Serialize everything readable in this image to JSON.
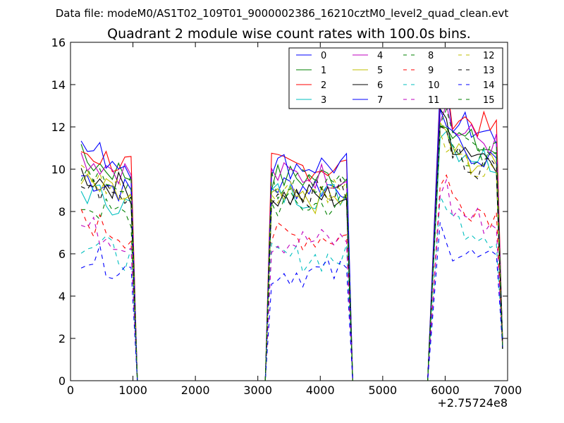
{
  "chart_data": {
    "type": "line",
    "suptitle": "Data file: modeM0/AS1T02_109T01_9000002386_16210cztM0_level2_quad_clean.evt",
    "title": "Quadrant 2 module wise count rates with 100.0s bins.",
    "xlabel": "",
    "ylabel": "",
    "x_offset_label": "+2.75724e8",
    "xlim": [
      0,
      7000
    ],
    "ylim": [
      0,
      16
    ],
    "xticks": [
      0,
      1000,
      2000,
      3000,
      4000,
      5000,
      6000,
      7000
    ],
    "yticks": [
      0,
      2,
      4,
      6,
      8,
      10,
      12,
      14,
      16
    ],
    "xtick_labels": [
      "0",
      "1000",
      "2000",
      "3000",
      "4000",
      "5000",
      "6000",
      "7000"
    ],
    "ytick_labels": [
      "0",
      "2",
      "4",
      "6",
      "8",
      "10",
      "12",
      "14",
      "16"
    ],
    "legend_position": "top-right",
    "legend_columns": 4,
    "segments": [
      {
        "start": 170,
        "end": 970,
        "drop_to": 1070
      },
      {
        "start": 3220,
        "end": 4420,
        "rise_from": 3120,
        "drop_to": 4520
      },
      {
        "start": 5920,
        "end": 6820,
        "rise_from": 5720,
        "drop_to": 6920
      }
    ],
    "gap_points": [
      1170,
      2000,
      3020,
      4620,
      5600
    ],
    "series": [
      {
        "name": "0",
        "color": "#0000ff",
        "dash": "solid",
        "levels": [
          9.7,
          9.2,
          12.5
        ]
      },
      {
        "name": "1",
        "color": "#008000",
        "dash": "solid",
        "levels": [
          10.5,
          9.6,
          11.8
        ]
      },
      {
        "name": "2",
        "color": "#ff0000",
        "dash": "solid",
        "levels": [
          10.9,
          10.1,
          12.8
        ]
      },
      {
        "name": "3",
        "color": "#00bfbf",
        "dash": "solid",
        "levels": [
          9.0,
          8.8,
          11.3
        ]
      },
      {
        "name": "4",
        "color": "#bf00bf",
        "dash": "solid",
        "levels": [
          10.6,
          9.7,
          12.1
        ]
      },
      {
        "name": "5",
        "color": "#bfbf00",
        "dash": "solid",
        "levels": [
          9.3,
          8.5,
          11.0
        ]
      },
      {
        "name": "6",
        "color": "#000000",
        "dash": "solid",
        "levels": [
          9.8,
          8.7,
          11.5
        ]
      },
      {
        "name": "7",
        "color": "#0000ff",
        "dash": "solid",
        "levels": [
          11.0,
          10.2,
          11.4
        ]
      },
      {
        "name": "8",
        "color": "#008000",
        "dash": "dashed",
        "levels": [
          8.4,
          8.3,
          11.2
        ]
      },
      {
        "name": "9",
        "color": "#ff0000",
        "dash": "dashed",
        "levels": [
          7.6,
          6.8,
          8.8
        ]
      },
      {
        "name": "10",
        "color": "#00bfbf",
        "dash": "dashed",
        "levels": [
          6.6,
          5.8,
          7.8
        ]
      },
      {
        "name": "11",
        "color": "#bf00bf",
        "dash": "dashed",
        "levels": [
          7.3,
          6.6,
          8.3
        ]
      },
      {
        "name": "12",
        "color": "#bfbf00",
        "dash": "dashed",
        "levels": [
          9.8,
          9.1,
          10.6
        ]
      },
      {
        "name": "13",
        "color": "#000000",
        "dash": "dashed",
        "levels": [
          9.3,
          8.9,
          10.9
        ]
      },
      {
        "name": "14",
        "color": "#0000ff",
        "dash": "dashed",
        "levels": [
          6.0,
          5.1,
          6.4
        ]
      },
      {
        "name": "15",
        "color": "#008000",
        "dash": "dashed",
        "levels": [
          9.9,
          9.3,
          11.6
        ]
      }
    ]
  }
}
